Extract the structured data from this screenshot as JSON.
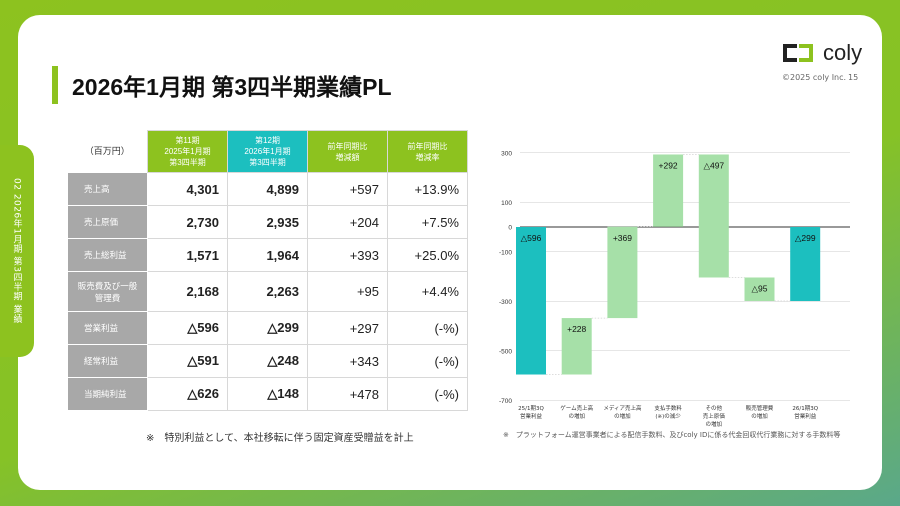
{
  "side_tab": "02  2026年1月期 第3四半期 業績",
  "title": "2026年1月期 第3四半期業績PL",
  "logo": {
    "text": "coly",
    "copyright": "©2025 coly Inc.",
    "page": "15"
  },
  "table": {
    "unit": "（百万円）",
    "headers": [
      "第11期\n2025年1月期\n第3四半期",
      "第12期\n2026年1月期\n第3四半期",
      "前年同期比\n増減額",
      "前年同期比\n増減率"
    ],
    "rows": [
      {
        "label": "売上高",
        "prev": "4,301",
        "curr": "4,899",
        "diff": "+597",
        "rate": "+13.9%"
      },
      {
        "label": "売上原価",
        "prev": "2,730",
        "curr": "2,935",
        "diff": "+204",
        "rate": "+7.5%"
      },
      {
        "label": "売上総利益",
        "prev": "1,571",
        "curr": "1,964",
        "diff": "+393",
        "rate": "+25.0%"
      },
      {
        "label": "販売費及び一般管理費",
        "prev": "2,168",
        "curr": "2,263",
        "diff": "+95",
        "rate": "+4.4%"
      },
      {
        "label": "営業利益",
        "prev": "△596",
        "curr": "△299",
        "diff": "+297",
        "rate": "(-%)"
      },
      {
        "label": "経常利益",
        "prev": "△591",
        "curr": "△248",
        "diff": "+343",
        "rate": "(-%)"
      },
      {
        "label": "当期純利益",
        "prev": "△626",
        "curr": "△148",
        "diff": "+478",
        "rate": "(-%)"
      }
    ]
  },
  "note_left": "※　特別利益として、本社移転に伴う固定資産受贈益を計上",
  "note_right": "※　プラットフォーム運営事業者による配信手数料、及びcoly IDに係る代金回収代行業務に対する手数料等",
  "colors": {
    "green": "#8dc21f",
    "teal": "#1cbfbf",
    "light_green": "#a6e0a8"
  },
  "chart_data": {
    "type": "waterfall",
    "yticks": [
      300,
      100,
      0,
      -100,
      -300,
      -500,
      -700
    ],
    "ylim": [
      -700,
      300
    ],
    "categories": [
      "25/1期3Q\n営業利益",
      "ゲーム売上高\nの増加",
      "メディア売上高\nの増加",
      "支払手数料\n(※)の減少",
      "その他\n売上原価\nの増加",
      "販売管理費\nの増加",
      "26/1期3Q\n営業利益"
    ],
    "bars": [
      {
        "start": 0,
        "end": -596,
        "label": "△596",
        "kind": "total"
      },
      {
        "start": -596,
        "end": -368,
        "label": "+228",
        "kind": "delta"
      },
      {
        "start": -368,
        "end": 1,
        "label": "+369",
        "kind": "delta"
      },
      {
        "start": 1,
        "end": 293,
        "label": "+292",
        "kind": "delta"
      },
      {
        "start": 293,
        "end": -204,
        "label": "△497",
        "kind": "delta"
      },
      {
        "start": -204,
        "end": -299,
        "label": "△95",
        "kind": "delta"
      },
      {
        "start": 0,
        "end": -299,
        "label": "△299",
        "kind": "total"
      }
    ]
  }
}
